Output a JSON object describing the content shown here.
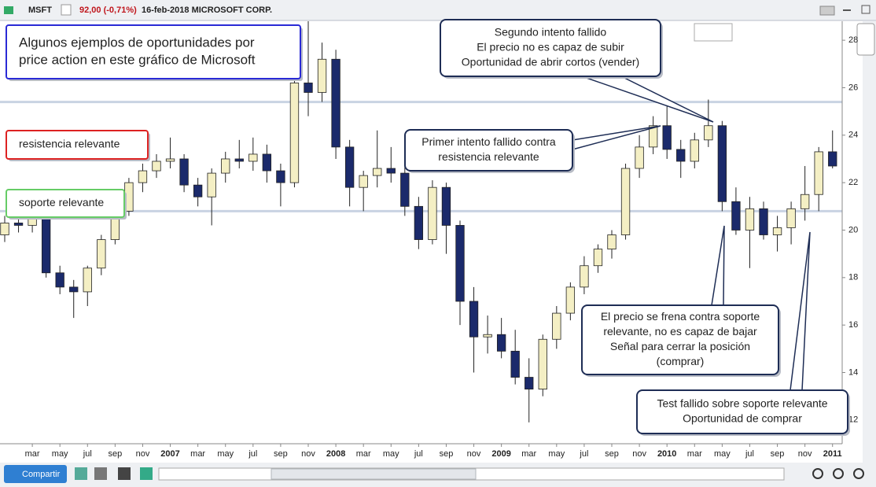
{
  "toolbar": {
    "symbol": "MSFT",
    "quote": "92,00 (-0,71%)",
    "description": "16-feb-2018 MICROSOFT CORP."
  },
  "footer": {
    "share": "Compartir"
  },
  "chart_data": {
    "type": "candlestick",
    "x": [
      0,
      1,
      2,
      3,
      4,
      5,
      6,
      7,
      8,
      9,
      10,
      11,
      12,
      13,
      14,
      15,
      16,
      17,
      18,
      19,
      20,
      21,
      22,
      23,
      24,
      25,
      26,
      27,
      28,
      29,
      30,
      31,
      32,
      33,
      34,
      35,
      36,
      37,
      38,
      39,
      40,
      41,
      42,
      43,
      44,
      45,
      46,
      47,
      48,
      49,
      50,
      51,
      52,
      53,
      54,
      55,
      56,
      57,
      58,
      59,
      60
    ],
    "open": [
      19.8,
      20.3,
      20.2,
      20.6,
      18.2,
      17.6,
      17.4,
      18.4,
      19.6,
      20.8,
      22.0,
      22.5,
      22.9,
      23.0,
      21.9,
      21.4,
      22.4,
      23.0,
      22.9,
      23.2,
      22.5,
      22.0,
      26.2,
      25.8,
      27.2,
      23.5,
      21.8,
      22.3,
      22.6,
      22.4,
      21.0,
      19.6,
      21.8,
      20.2,
      17.0,
      15.5,
      15.6,
      14.9,
      13.8,
      13.3,
      15.4,
      16.5,
      17.6,
      18.5,
      19.2,
      19.8,
      22.6,
      23.5,
      24.4,
      23.4,
      22.9,
      23.8,
      24.4,
      21.2,
      20.0,
      20.9,
      19.8,
      20.1,
      20.9,
      21.5,
      23.3
    ],
    "high": [
      20.6,
      20.8,
      21.0,
      20.8,
      18.5,
      17.9,
      18.5,
      19.8,
      21.0,
      22.2,
      22.8,
      23.2,
      23.9,
      23.2,
      22.2,
      22.6,
      23.3,
      23.8,
      23.9,
      23.6,
      22.8,
      27.2,
      28.8,
      27.9,
      27.6,
      23.8,
      22.5,
      24.2,
      23.5,
      22.8,
      21.4,
      22.1,
      22.0,
      20.4,
      17.6,
      16.4,
      16.3,
      15.8,
      14.6,
      15.6,
      16.8,
      17.8,
      18.9,
      19.4,
      20.0,
      22.8,
      24.0,
      24.8,
      25.3,
      23.8,
      24.1,
      25.5,
      24.6,
      21.8,
      21.4,
      21.2,
      20.6,
      21.2,
      22.7,
      23.5,
      24.2
    ],
    "low": [
      19.5,
      19.9,
      19.9,
      18.0,
      17.3,
      16.3,
      16.8,
      18.1,
      19.4,
      20.6,
      21.6,
      22.2,
      22.6,
      21.6,
      21.0,
      20.2,
      22.0,
      22.6,
      22.5,
      22.0,
      21.0,
      21.8,
      24.8,
      25.4,
      23.0,
      21.0,
      20.8,
      21.8,
      22.0,
      20.6,
      19.2,
      19.4,
      19.0,
      16.0,
      14.0,
      14.8,
      14.6,
      13.5,
      11.9,
      13.0,
      15.0,
      16.2,
      17.3,
      18.2,
      18.8,
      19.6,
      22.2,
      23.2,
      23.0,
      22.2,
      22.6,
      23.5,
      20.8,
      19.8,
      18.4,
      19.6,
      19.1,
      19.4,
      20.4,
      20.8,
      22.6
    ],
    "close": [
      20.3,
      20.2,
      20.6,
      18.2,
      17.6,
      17.4,
      18.4,
      19.6,
      20.8,
      22.0,
      22.5,
      22.9,
      23.0,
      21.9,
      21.4,
      22.4,
      23.0,
      22.9,
      23.2,
      22.5,
      22.0,
      26.2,
      25.8,
      27.2,
      23.5,
      21.8,
      22.3,
      22.6,
      22.4,
      21.0,
      19.6,
      21.8,
      20.2,
      17.0,
      15.5,
      15.6,
      14.9,
      13.8,
      13.3,
      15.4,
      16.5,
      17.6,
      18.5,
      19.2,
      19.8,
      22.6,
      23.5,
      24.4,
      23.4,
      22.9,
      23.8,
      24.4,
      21.2,
      20.0,
      20.9,
      19.8,
      20.1,
      20.9,
      21.5,
      23.3,
      22.7
    ],
    "up_color": "#f4efc4",
    "down_color": "#1b2a6b",
    "xlim": [
      0,
      60.9
    ],
    "xticks": [
      {
        "value": 2,
        "label": "mar"
      },
      {
        "value": 4,
        "label": "may"
      },
      {
        "value": 6,
        "label": "jul"
      },
      {
        "value": 8,
        "label": "sep"
      },
      {
        "value": 10,
        "label": "nov"
      },
      {
        "value": 12,
        "label": "2007"
      },
      {
        "value": 14,
        "label": "mar"
      },
      {
        "value": 16,
        "label": "may"
      },
      {
        "value": 18,
        "label": "jul"
      },
      {
        "value": 20,
        "label": "sep"
      },
      {
        "value": 22,
        "label": "nov"
      },
      {
        "value": 24,
        "label": "2008"
      },
      {
        "value": 26,
        "label": "mar"
      },
      {
        "value": 28,
        "label": "may"
      },
      {
        "value": 30,
        "label": "jul"
      },
      {
        "value": 32,
        "label": "sep"
      },
      {
        "value": 34,
        "label": "nov"
      },
      {
        "value": 36,
        "label": "2009"
      },
      {
        "value": 38,
        "label": "mar"
      },
      {
        "value": 40,
        "label": "may"
      },
      {
        "value": 42,
        "label": "jul"
      },
      {
        "value": 44,
        "label": "sep"
      },
      {
        "value": 46,
        "label": "nov"
      },
      {
        "value": 48,
        "label": "2010"
      },
      {
        "value": 50,
        "label": "mar"
      },
      {
        "value": 52,
        "label": "may"
      },
      {
        "value": 54,
        "label": "jul"
      },
      {
        "value": 56,
        "label": "sep"
      },
      {
        "value": 58,
        "label": "nov"
      },
      {
        "value": 60,
        "label": "2011"
      }
    ],
    "ylim": [
      11,
      28.8
    ],
    "yticks": [
      12,
      14,
      16,
      18,
      20,
      22,
      24,
      26,
      28
    ],
    "levels": [
      25.4,
      20.8
    ],
    "annotations": [
      {
        "lines": [
          "Algunos ejemplos de oportunidades por",
          "price action en este gráfico de Microsoft"
        ]
      },
      {
        "lines": [
          "resistencia relevante"
        ]
      },
      {
        "lines": [
          "soporte relevante"
        ]
      },
      {
        "lines": [
          "Primer intento fallido contra",
          "resistencia relevante"
        ]
      },
      {
        "lines": [
          "Segundo intento fallido",
          "El precio no es capaz de subir",
          "Oportunidad de abrir cortos (vender)"
        ]
      },
      {
        "lines": [
          "El precio se frena contra soporte",
          "relevante, no es capaz de bajar",
          "Señal para cerrar la posición",
          "(comprar)"
        ]
      },
      {
        "lines": [
          "Test fallido sobre soporte relevante",
          "Oportunidad de comprar"
        ]
      }
    ]
  }
}
